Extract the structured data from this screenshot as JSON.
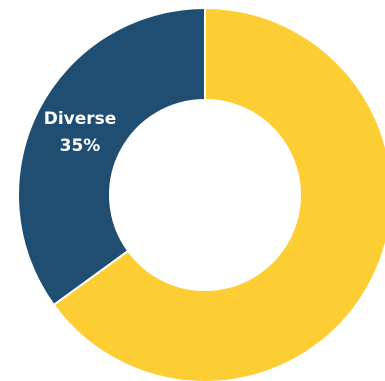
{
  "chart_data": {
    "type": "pie",
    "donut": true,
    "title": "",
    "legend": "none",
    "slices": [
      {
        "label": "",
        "value": 65,
        "display_label": "",
        "color": "#FDCD34"
      },
      {
        "label": "Diverse",
        "value": 35,
        "display_label": "35%",
        "color": "#1F4E72"
      }
    ],
    "separator_color": "#ffffff"
  }
}
